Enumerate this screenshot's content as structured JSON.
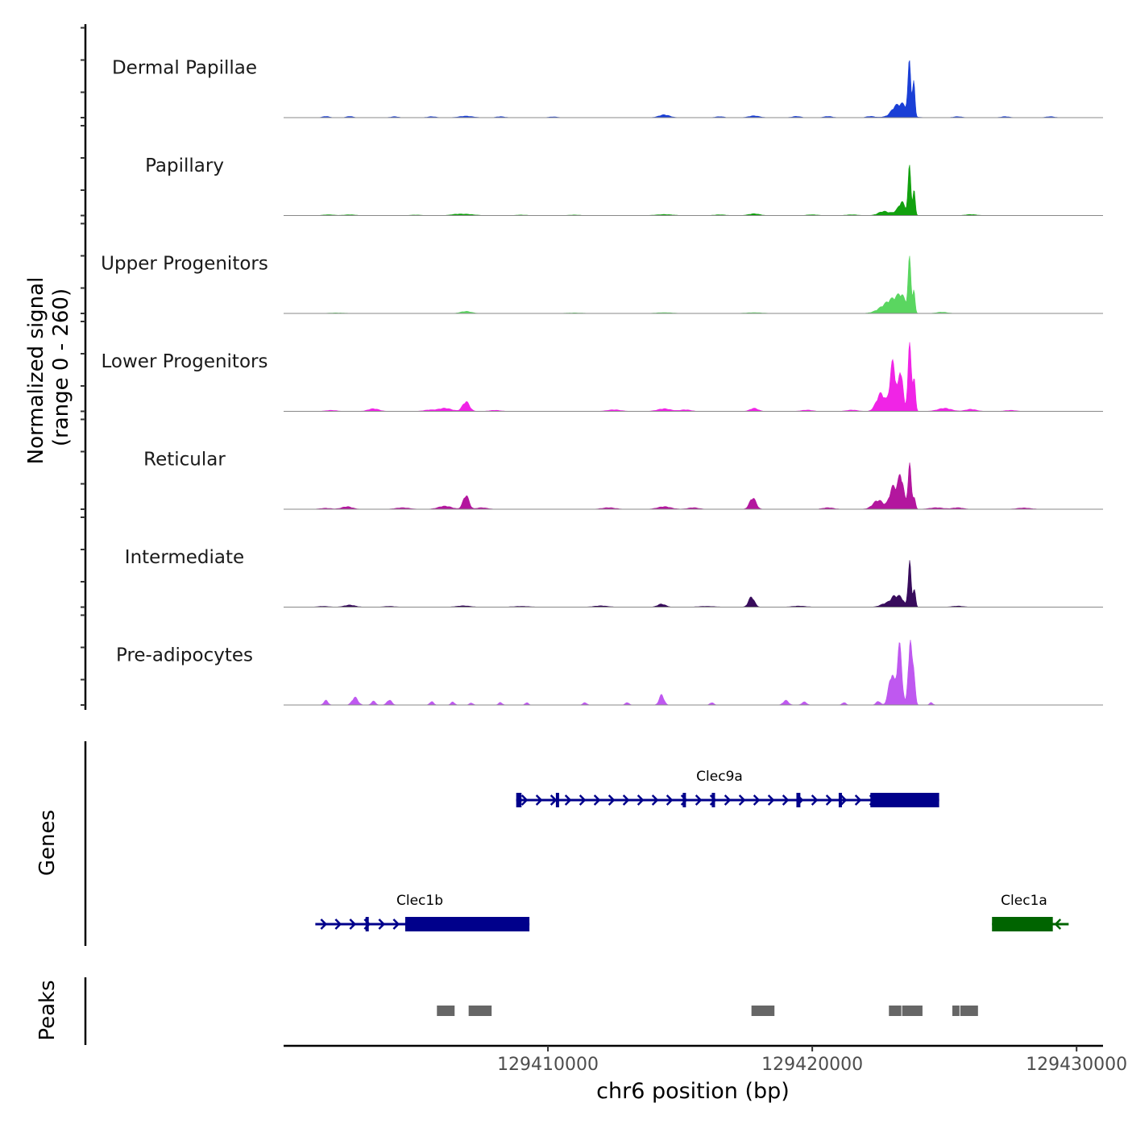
{
  "chart_data": {
    "type": "genome-coverage",
    "chromosome": "chr6",
    "xlabel": "chr6 position (bp)",
    "xlim": [
      129400000,
      129431000
    ],
    "xticks": [
      129410000,
      129420000,
      129430000
    ],
    "xtick_labels": [
      "129410000",
      "129420000",
      "129430000"
    ],
    "coverage": {
      "ylabel_line1": "Normalized signal",
      "ylabel_line2": "(range 0 - 260)",
      "y_range": [
        0,
        260
      ],
      "tracks": [
        {
          "name": "Dermal Papillae",
          "color": "#1a3fd6",
          "peaks": [
            [
              129401600,
              5,
              120
            ],
            [
              129402500,
              5,
              120
            ],
            [
              129404200,
              4,
              130
            ],
            [
              129405600,
              4,
              150
            ],
            [
              129406900,
              6,
              250
            ],
            [
              129408200,
              4,
              150
            ],
            [
              129410200,
              3,
              150
            ],
            [
              129414400,
              11,
              200
            ],
            [
              129416500,
              4,
              150
            ],
            [
              129417800,
              7,
              200
            ],
            [
              129419400,
              5,
              150
            ],
            [
              129420600,
              5,
              150
            ],
            [
              129422200,
              5,
              150
            ],
            [
              129423150,
              30,
              150
            ],
            [
              129423450,
              35,
              140
            ],
            [
              129423680,
              205,
              55
            ],
            [
              129423840,
              130,
              45
            ],
            [
              129423300,
              15,
              350
            ],
            [
              129425500,
              4,
              150
            ],
            [
              129427300,
              4,
              150
            ],
            [
              129429000,
              4,
              150
            ]
          ]
        },
        {
          "name": "Papillary",
          "color": "#12a10f",
          "peaks": [
            [
              129401700,
              3,
              200
            ],
            [
              129402500,
              3,
              200
            ],
            [
              129405000,
              2,
              200
            ],
            [
              129406500,
              3,
              200
            ],
            [
              129406900,
              5,
              300
            ],
            [
              129409000,
              2,
              200
            ],
            [
              129411000,
              2,
              200
            ],
            [
              129414400,
              4,
              300
            ],
            [
              129416500,
              3,
              200
            ],
            [
              129417800,
              7,
              200
            ],
            [
              129420000,
              3,
              200
            ],
            [
              129421500,
              3,
              200
            ],
            [
              129422700,
              16,
              200
            ],
            [
              129423300,
              20,
              200
            ],
            [
              129423400,
              35,
              110
            ],
            [
              129423680,
              185,
              55
            ],
            [
              129423850,
              95,
              45
            ],
            [
              129426000,
              4,
              200
            ]
          ]
        },
        {
          "name": "Upper Progenitors",
          "color": "#5ad660",
          "peaks": [
            [
              129402000,
              2,
              300
            ],
            [
              129406900,
              8,
              200
            ],
            [
              129411000,
              2,
              300
            ],
            [
              129414400,
              3,
              300
            ],
            [
              129417800,
              3,
              300
            ],
            [
              129422800,
              28,
              300
            ],
            [
              129423150,
              40,
              250
            ],
            [
              129423400,
              45,
              150
            ],
            [
              129423680,
              200,
              55
            ],
            [
              129423840,
              90,
              45
            ],
            [
              129424900,
              5,
              200
            ]
          ]
        },
        {
          "name": "Lower Progenitors",
          "color": "#f024e6",
          "peaks": [
            [
              129401800,
              4,
              200
            ],
            [
              129403400,
              10,
              200
            ],
            [
              129405500,
              5,
              200
            ],
            [
              129406100,
              12,
              250
            ],
            [
              129406900,
              38,
              130
            ],
            [
              129408000,
              4,
              200
            ],
            [
              129412500,
              6,
              250
            ],
            [
              129414400,
              10,
              250
            ],
            [
              129415200,
              6,
              200
            ],
            [
              129417800,
              12,
              150
            ],
            [
              129419800,
              5,
              200
            ],
            [
              129421500,
              5,
              200
            ],
            [
              129422600,
              70,
              170
            ],
            [
              129423050,
              190,
              110
            ],
            [
              129423350,
              160,
              80
            ],
            [
              129423680,
              255,
              65
            ],
            [
              129423850,
              130,
              50
            ],
            [
              129425000,
              12,
              250
            ],
            [
              129426000,
              8,
              200
            ],
            [
              129427500,
              4,
              200
            ]
          ]
        },
        {
          "name": "Reticular",
          "color": "#b3169e",
          "peaks": [
            [
              129401600,
              4,
              200
            ],
            [
              129402400,
              10,
              200
            ],
            [
              129404500,
              6,
              250
            ],
            [
              129406100,
              12,
              250
            ],
            [
              129406900,
              55,
              110
            ],
            [
              129407500,
              6,
              200
            ],
            [
              129412300,
              6,
              250
            ],
            [
              129414400,
              10,
              250
            ],
            [
              129415500,
              6,
              200
            ],
            [
              129417750,
              45,
              120
            ],
            [
              129420600,
              6,
              200
            ],
            [
              129422500,
              35,
              200
            ],
            [
              129423050,
              85,
              130
            ],
            [
              129423350,
              130,
              110
            ],
            [
              129423680,
              175,
              60
            ],
            [
              129423850,
              50,
              50
            ],
            [
              129424700,
              6,
              250
            ],
            [
              129425500,
              6,
              200
            ],
            [
              129428000,
              5,
              250
            ]
          ]
        },
        {
          "name": "Intermediate",
          "color": "#380c5c",
          "peaks": [
            [
              129401500,
              3,
              200
            ],
            [
              129402500,
              8,
              200
            ],
            [
              129404000,
              3,
              200
            ],
            [
              129406800,
              5,
              250
            ],
            [
              129409000,
              3,
              300
            ],
            [
              129412000,
              5,
              250
            ],
            [
              129414300,
              12,
              150
            ],
            [
              129416000,
              3,
              300
            ],
            [
              129417700,
              40,
              110
            ],
            [
              129419500,
              4,
              250
            ],
            [
              129422800,
              15,
              200
            ],
            [
              129423100,
              35,
              130
            ],
            [
              129423350,
              35,
              120
            ],
            [
              129423680,
              185,
              55
            ],
            [
              129423860,
              80,
              45
            ],
            [
              129425500,
              4,
              200
            ]
          ]
        },
        {
          "name": "Pre-adipocytes",
          "color": "#bf58f0",
          "peaks": [
            [
              129401600,
              18,
              80
            ],
            [
              129402700,
              30,
              110
            ],
            [
              129403400,
              15,
              80
            ],
            [
              129404000,
              20,
              90
            ],
            [
              129405600,
              14,
              70
            ],
            [
              129406400,
              12,
              70
            ],
            [
              129407100,
              8,
              70
            ],
            [
              129408200,
              10,
              70
            ],
            [
              129409200,
              10,
              60
            ],
            [
              129411400,
              10,
              70
            ],
            [
              129413000,
              10,
              70
            ],
            [
              129414300,
              40,
              90
            ],
            [
              129416200,
              10,
              70
            ],
            [
              129419000,
              18,
              100
            ],
            [
              129419700,
              12,
              90
            ],
            [
              129421200,
              10,
              70
            ],
            [
              129422500,
              15,
              80
            ],
            [
              129423000,
              120,
              110
            ],
            [
              129423300,
              230,
              90
            ],
            [
              129423700,
              255,
              70
            ],
            [
              129423850,
              120,
              50
            ],
            [
              129424500,
              10,
              60
            ]
          ]
        }
      ]
    },
    "genes": {
      "ylabel": "Genes",
      "items": [
        {
          "name": "Clec9a",
          "strand": "+",
          "color": "#00008b",
          "start": 129408800,
          "end": 129424800,
          "exons": [
            [
              129408800,
              129409000
            ],
            [
              129410300,
              129410350
            ],
            [
              129415100,
              129415200
            ],
            [
              129416200,
              129416250
            ],
            [
              129419400,
              129419550
            ],
            [
              129421000,
              129421100
            ],
            [
              129422200,
              129424800
            ]
          ]
        },
        {
          "name": "Clec1b",
          "strand": "+",
          "color": "#00008b",
          "start": 129401200,
          "end": 129409300,
          "exons": [
            [
              129403100,
              129403200
            ],
            [
              129404600,
              129409300
            ]
          ]
        },
        {
          "name": "Clec1a",
          "strand": "-",
          "color": "#006400",
          "start": 129426800,
          "end": 129429700,
          "exons": [
            [
              129426800,
              129429100
            ]
          ]
        }
      ]
    },
    "peaks": {
      "ylabel": "Peaks",
      "color": "#666666",
      "regions": [
        [
          129405800,
          129406500
        ],
        [
          129407000,
          129407900
        ],
        [
          129417700,
          129418600
        ],
        [
          129422900,
          129423400
        ],
        [
          129423400,
          129424200
        ],
        [
          129425300,
          129425600
        ],
        [
          129425600,
          129426300
        ]
      ]
    }
  }
}
